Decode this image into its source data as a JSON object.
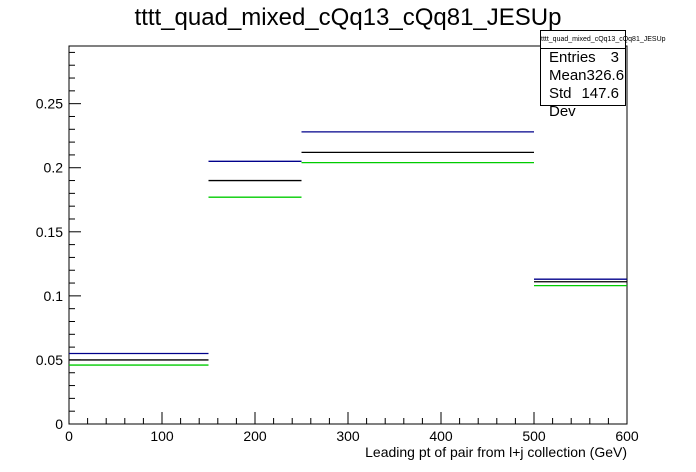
{
  "chart_data": {
    "type": "histogram-step",
    "title": "tttt_quad_mixed_cQq13_cQq81_JESUp",
    "xlabel": "Leading pt of pair from l+j collection (GeV)",
    "ylabel": "",
    "xlim": [
      0,
      600
    ],
    "ylim": [
      0,
      0.295
    ],
    "x_ticks": [
      0,
      100,
      200,
      300,
      400,
      500,
      600
    ],
    "x_tick_labels": [
      "0",
      "100",
      "200",
      "300",
      "400",
      "500",
      "600"
    ],
    "y_ticks": [
      0,
      0.05,
      0.1,
      0.15,
      0.2,
      0.25
    ],
    "y_tick_labels": [
      "0",
      "0.05",
      "0.1",
      "0.15",
      "0.2",
      "0.25"
    ],
    "bin_edges": [
      0,
      150,
      250,
      500,
      600
    ],
    "series": [
      {
        "color": "#00008b",
        "values": [
          0.055,
          0.205,
          0.228,
          0.113
        ]
      },
      {
        "color": "#000000",
        "values": [
          0.05,
          0.19,
          0.212,
          0.111
        ]
      },
      {
        "color": "#00cc00",
        "values": [
          0.046,
          0.177,
          0.204,
          0.108
        ]
      }
    ],
    "stats": {
      "name": "tttt_quad_mixed_cQq13_cQq81_JESUp",
      "entries_label": "Entries",
      "entries": "3",
      "mean_label": "Mean",
      "mean": "326.6",
      "std_label": "Std Dev",
      "std": "147.6"
    },
    "grid": false,
    "legend": "none"
  }
}
